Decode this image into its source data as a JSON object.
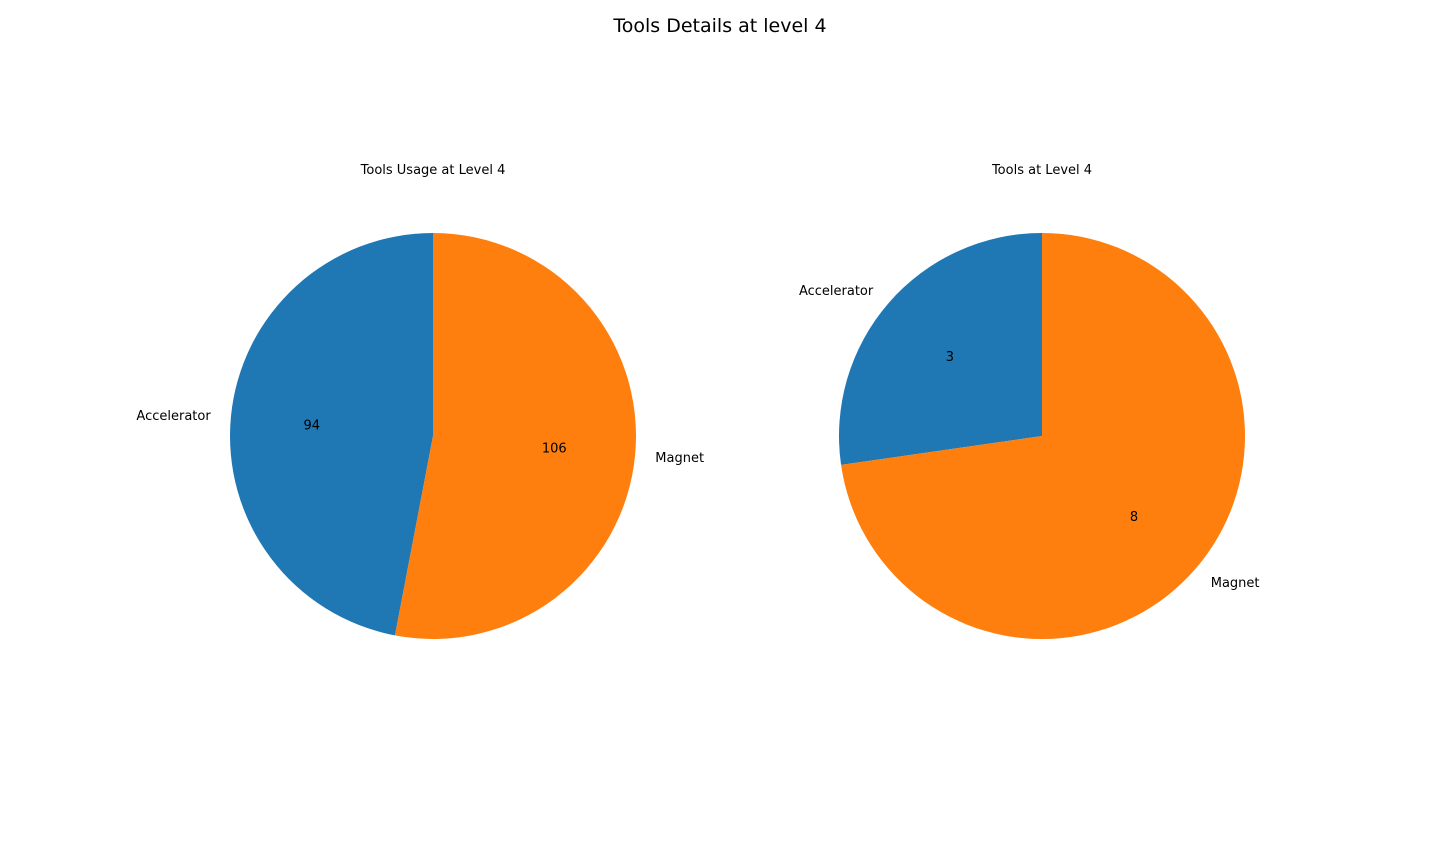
{
  "figure": {
    "title": "Tools Details at level 4"
  },
  "chart_data": [
    {
      "type": "pie",
      "title": "Tools Usage at Level 4",
      "categories": [
        "Accelerator",
        "Magnet"
      ],
      "values": [
        94,
        106
      ],
      "data_labels": [
        "94",
        "106"
      ],
      "colors": [
        "#1f77b4",
        "#ff7f0e"
      ],
      "start_angle_deg": 90,
      "direction": "counterclockwise"
    },
    {
      "type": "pie",
      "title": "Tools at Level 4",
      "categories": [
        "Accelerator",
        "Magnet"
      ],
      "values": [
        3,
        8
      ],
      "data_labels": [
        "3",
        "8"
      ],
      "colors": [
        "#1f77b4",
        "#ff7f0e"
      ],
      "start_angle_deg": 90,
      "direction": "counterclockwise"
    }
  ]
}
